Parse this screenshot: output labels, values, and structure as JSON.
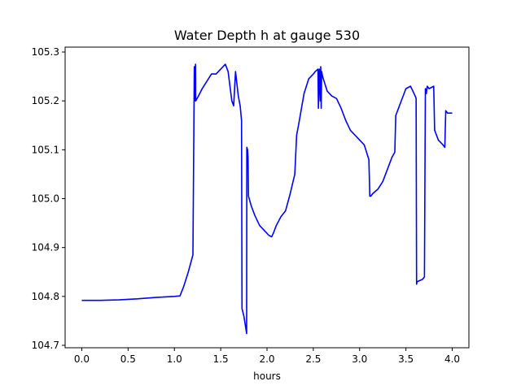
{
  "chart_data": {
    "type": "line",
    "title": "Water Depth h at gauge 530",
    "xlabel": "hours",
    "ylabel": "",
    "xlim": [
      -0.18,
      4.18
    ],
    "ylim": [
      104.695,
      105.31
    ],
    "xticks": [
      0.0,
      0.5,
      1.0,
      1.5,
      2.0,
      2.5,
      3.0,
      3.5,
      4.0
    ],
    "xtick_labels": [
      "0.0",
      "0.5",
      "1.0",
      "1.5",
      "2.0",
      "2.5",
      "3.0",
      "3.5",
      "4.0"
    ],
    "yticks": [
      104.7,
      104.8,
      104.9,
      105.0,
      105.1,
      105.2,
      105.3
    ],
    "ytick_labels": [
      "104.7",
      "104.8",
      "104.9",
      "105.0",
      "105.1",
      "105.2",
      "105.3"
    ],
    "grid": false,
    "series": [
      {
        "color": "#0000ff",
        "x": [
          0.0,
          0.2,
          0.4,
          0.6,
          0.8,
          1.0,
          1.06,
          1.1,
          1.15,
          1.2,
          1.215,
          1.218,
          1.225,
          1.228,
          1.23,
          1.26,
          1.3,
          1.35,
          1.4,
          1.45,
          1.5,
          1.55,
          1.58,
          1.62,
          1.64,
          1.66,
          1.69,
          1.71,
          1.72,
          1.725,
          1.73,
          1.75,
          1.78,
          1.782,
          1.79,
          1.795,
          1.8,
          1.83,
          1.87,
          1.92,
          1.97,
          2.02,
          2.05,
          2.07,
          2.1,
          2.15,
          2.2,
          2.25,
          2.3,
          2.32,
          2.34,
          2.4,
          2.45,
          2.5,
          2.52,
          2.55,
          2.555,
          2.565,
          2.575,
          2.58,
          2.585,
          2.59,
          2.6,
          2.65,
          2.7,
          2.75,
          2.8,
          2.85,
          2.9,
          2.95,
          3.0,
          3.05,
          3.1,
          3.11,
          3.12,
          3.14,
          3.2,
          3.25,
          3.3,
          3.35,
          3.38,
          3.39,
          3.42,
          3.5,
          3.55,
          3.6,
          3.61,
          3.615,
          3.62,
          3.68,
          3.7,
          3.71,
          3.72,
          3.73,
          3.75,
          3.8,
          3.81,
          3.82,
          3.85,
          3.9,
          3.92,
          3.93,
          3.95,
          4.0
        ],
        "y": [
          104.792,
          104.792,
          104.793,
          104.795,
          104.798,
          104.8,
          104.801,
          104.82,
          104.85,
          104.885,
          105.27,
          105.2,
          105.205,
          105.275,
          105.2,
          105.21,
          105.225,
          105.24,
          105.255,
          105.255,
          105.265,
          105.275,
          105.26,
          105.2,
          105.19,
          105.26,
          105.21,
          105.19,
          105.17,
          105.16,
          104.775,
          104.76,
          104.724,
          105.105,
          105.1,
          105.085,
          105.005,
          104.985,
          104.965,
          104.945,
          104.935,
          104.925,
          104.922,
          104.93,
          104.945,
          104.963,
          104.975,
          105.01,
          105.05,
          105.13,
          105.15,
          105.215,
          105.245,
          105.255,
          105.26,
          105.265,
          105.185,
          105.265,
          105.2,
          105.27,
          105.185,
          105.26,
          105.25,
          105.22,
          105.21,
          105.205,
          105.185,
          105.16,
          105.14,
          105.13,
          105.12,
          105.11,
          105.08,
          105.005,
          105.005,
          105.01,
          105.02,
          105.035,
          105.06,
          105.085,
          105.095,
          105.17,
          105.185,
          105.225,
          105.23,
          105.21,
          105.205,
          104.825,
          104.83,
          104.835,
          104.84,
          105.225,
          105.215,
          105.23,
          105.225,
          105.23,
          105.14,
          105.135,
          105.12,
          105.11,
          105.105,
          105.18,
          105.175,
          105.175
        ]
      }
    ]
  }
}
